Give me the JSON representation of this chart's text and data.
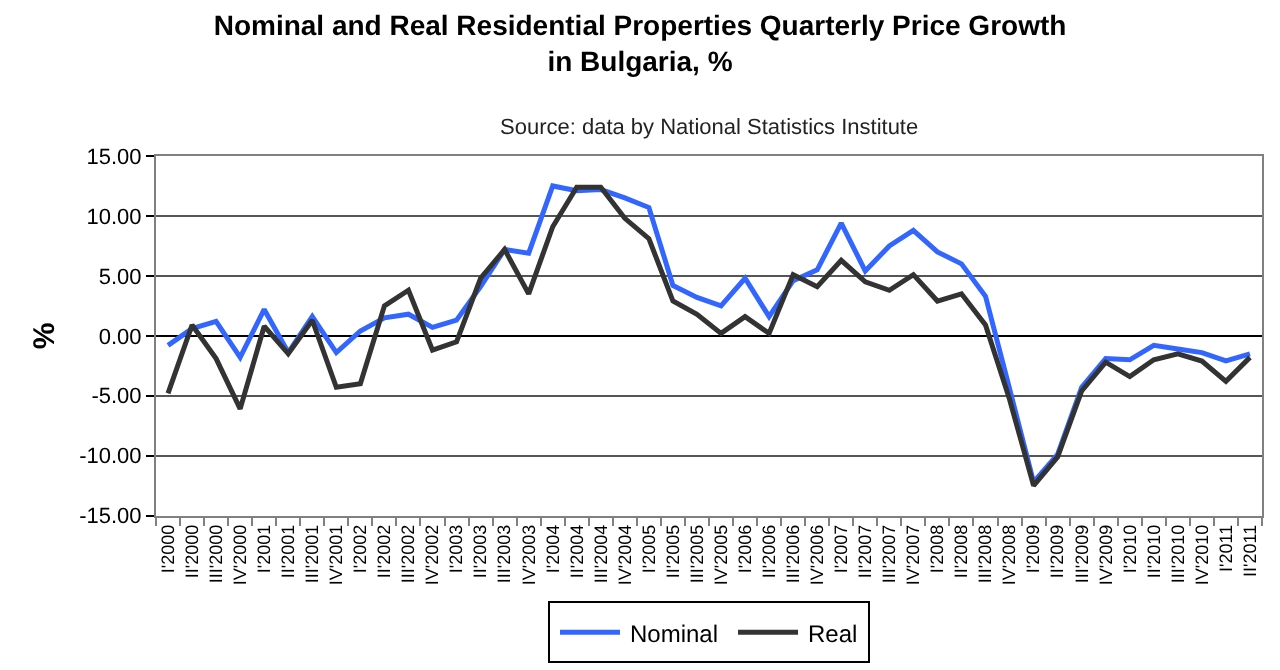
{
  "chart_data": {
    "type": "line",
    "title": "Nominal and Real Residential Properties Quarterly Price Growth in Bulgaria, %",
    "annotations": [
      "Source: data by National Statistics Institute"
    ],
    "ylabel": "%",
    "categories": [
      "I'2000",
      "II'2000",
      "III'2000",
      "IV'2000",
      "I'2001",
      "II'2001",
      "III'2001",
      "IV'2001",
      "I'2002",
      "II'2002",
      "III'2002",
      "IV'2002",
      "I'2003",
      "II'2003",
      "III'2003",
      "IV'2003",
      "I'2004",
      "II'2004",
      "III'2004",
      "IV'2004",
      "I'2005",
      "II'2005",
      "III'2005",
      "IV'2005",
      "I'2006",
      "II'2006",
      "III'2006",
      "IV'2006",
      "I'2007",
      "II'2007",
      "III'2007",
      "IV'2007",
      "I'2008",
      "II'2008",
      "III'2008",
      "IV'2008",
      "I'2009",
      "II'2009",
      "III'2009",
      "IV'2009",
      "I'2010",
      "II'2010",
      "III'2010",
      "IV'2010",
      "I'2011",
      "II'2011"
    ],
    "series": [
      {
        "name": "Nominal",
        "color": "#3366ff",
        "values": [
          -0.8,
          0.6,
          1.2,
          -1.8,
          2.2,
          -1.4,
          1.6,
          -1.4,
          0.4,
          1.5,
          1.8,
          0.7,
          1.3,
          4.1,
          7.2,
          6.9,
          12.5,
          12.1,
          12.2,
          11.5,
          10.7,
          4.2,
          3.2,
          2.5,
          4.8,
          1.6,
          4.6,
          5.5,
          9.4,
          5.4,
          7.5,
          8.8,
          7.0,
          6.0,
          3.3,
          -4.4,
          -12.2,
          -9.9,
          -4.3,
          -1.9,
          -2.0,
          -0.8,
          -1.1,
          -1.4,
          -2.1,
          -1.5
        ]
      },
      {
        "name": "Real",
        "color": "#333333",
        "values": [
          -4.8,
          0.9,
          -1.9,
          -6.1,
          0.8,
          -1.5,
          1.3,
          -4.3,
          -4.0,
          2.5,
          3.8,
          -1.2,
          -0.5,
          4.8,
          7.2,
          3.5,
          9.1,
          12.4,
          12.4,
          9.8,
          8.1,
          2.9,
          1.8,
          0.2,
          1.6,
          0.2,
          5.1,
          4.1,
          6.3,
          4.5,
          3.8,
          5.1,
          2.9,
          3.5,
          0.9,
          -5.3,
          -12.5,
          -10.1,
          -4.6,
          -2.2,
          -3.4,
          -2.0,
          -1.5,
          -2.1,
          -3.8,
          -1.8
        ]
      }
    ],
    "ylim": [
      -15,
      15
    ],
    "yticks": [
      {
        "value": -15,
        "label": "-15.00"
      },
      {
        "value": -10,
        "label": "-10.00"
      },
      {
        "value": -5,
        "label": "-5.00"
      },
      {
        "value": 0,
        "label": "0.00"
      },
      {
        "value": 5,
        "label": "5.00"
      },
      {
        "value": 10,
        "label": "10.00"
      },
      {
        "value": 15,
        "label": "15.00"
      }
    ],
    "grid": "y",
    "legend": "bottom",
    "marker": "none",
    "line_style": "solid"
  }
}
